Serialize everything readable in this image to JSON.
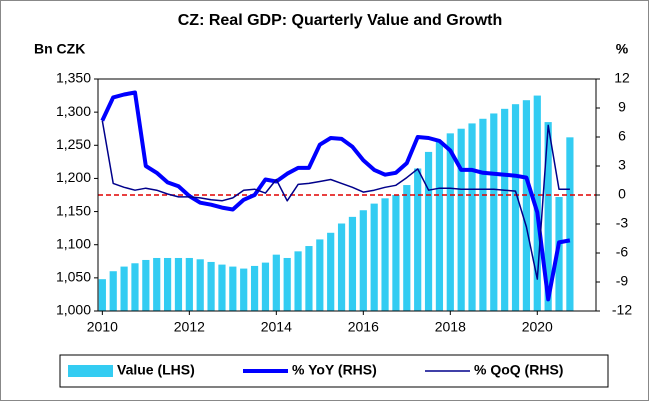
{
  "chart_data": {
    "type": "bar_line",
    "title": "CZ: Real GDP: Quarterly Value and Growth",
    "y_label": "Bn CZK",
    "y2_label": "%",
    "x": [
      2010,
      2010.25,
      2010.5,
      2010.75,
      2011,
      2011.25,
      2011.5,
      2011.75,
      2012,
      2012.25,
      2012.5,
      2012.75,
      2013,
      2013.25,
      2013.5,
      2013.75,
      2014,
      2014.25,
      2014.5,
      2014.75,
      2015,
      2015.25,
      2015.5,
      2015.75,
      2016,
      2016.25,
      2016.5,
      2016.75,
      2017,
      2017.25,
      2017.5,
      2017.75,
      2018,
      2018.25,
      2018.5,
      2018.75,
      2019,
      2019.25,
      2019.5,
      2019.75,
      2020,
      2020.25,
      2020.5,
      2020.75
    ],
    "xlim": [
      2009.9,
      2021.35
    ],
    "xticks": [
      2010,
      2012,
      2014,
      2016,
      2018,
      2020
    ],
    "ylim": [
      1000,
      1350
    ],
    "yticks": [
      {
        "value": 1000,
        "label": "1,000"
      },
      {
        "value": 1050,
        "label": "1,050"
      },
      {
        "value": 1100,
        "label": "1,100"
      },
      {
        "value": 1150,
        "label": "1,150"
      },
      {
        "value": 1200,
        "label": "1,200"
      },
      {
        "value": 1250,
        "label": "1,250"
      },
      {
        "value": 1300,
        "label": "1,300"
      },
      {
        "value": 1350,
        "label": "1,350"
      }
    ],
    "y2lim": [
      -12,
      12
    ],
    "y2ticks": [
      -12,
      -9,
      -6,
      -3,
      0,
      3,
      6,
      9,
      12
    ],
    "reference_line": {
      "value": 0,
      "axis": "y2",
      "color": "#e00000"
    },
    "series": [
      {
        "name": "Value (LHS)",
        "kind": "bar",
        "color": "#33ccf2",
        "values": [
          1048,
          1060,
          1067,
          1072,
          1077,
          1080,
          1080,
          1080,
          1080,
          1078,
          1074,
          1070,
          1067,
          1064,
          1068,
          1073,
          1085,
          1080,
          1090,
          1098,
          1108,
          1118,
          1132,
          1142,
          1152,
          1162,
          1170,
          1175,
          1190,
          1215,
          1240,
          1255,
          1268,
          1275,
          1283,
          1290,
          1298,
          1305,
          1312,
          1318,
          1325,
          1285,
          1172,
          1262
        ]
      },
      {
        "name": "% YoY (RHS)",
        "kind": "line",
        "axis": "y2",
        "color": "#0000ff",
        "width": 4,
        "values": [
          7.7,
          10.1,
          10.4,
          10.6,
          3.0,
          2.3,
          1.3,
          0.9,
          -0.1,
          -0.8,
          -1.0,
          -1.3,
          -1.5,
          -0.5,
          0.0,
          1.6,
          1.4,
          2.2,
          2.8,
          2.8,
          5.2,
          5.9,
          5.8,
          5.0,
          3.6,
          2.6,
          2.1,
          2.3,
          3.3,
          6.0,
          5.9,
          5.6,
          4.6,
          2.6,
          2.6,
          2.3,
          2.2,
          2.1,
          2.0,
          1.8,
          -1.8,
          -10.8,
          -4.9,
          -4.7
        ]
      },
      {
        "name": "% QoQ (RHS)",
        "kind": "line",
        "axis": "y2",
        "color": "#00008b",
        "width": 1.5,
        "values": [
          7.7,
          1.2,
          0.8,
          0.5,
          0.7,
          0.5,
          0.1,
          -0.2,
          -0.2,
          -0.3,
          -0.5,
          -0.6,
          -0.3,
          0.5,
          0.6,
          0.2,
          1.6,
          -0.6,
          1.1,
          1.2,
          1.4,
          1.6,
          1.2,
          0.8,
          0.3,
          0.5,
          0.8,
          1.0,
          1.8,
          2.7,
          0.5,
          0.7,
          0.7,
          0.6,
          0.6,
          0.6,
          0.6,
          0.5,
          0.4,
          -3.3,
          -8.7,
          7.2,
          0.6,
          0.6
        ]
      }
    ]
  }
}
